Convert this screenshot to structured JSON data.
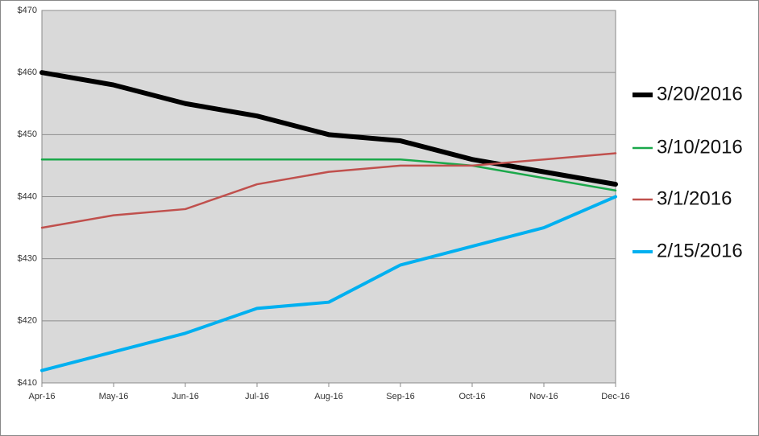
{
  "chart_data": {
    "type": "line",
    "categories": [
      "Apr-16",
      "May-16",
      "Jun-16",
      "Jul-16",
      "Aug-16",
      "Sep-16",
      "Oct-16",
      "Nov-16",
      "Dec-16"
    ],
    "series": [
      {
        "name": "3/20/2016",
        "color": "#000000",
        "values": [
          460,
          458,
          455,
          453,
          450,
          449,
          446,
          444,
          442
        ]
      },
      {
        "name": "3/10/2016",
        "color": "#1aa84a",
        "values": [
          446,
          446,
          446,
          446,
          446,
          446,
          445,
          443,
          441
        ]
      },
      {
        "name": "3/1/2016",
        "color": "#c0504d",
        "values": [
          435,
          437,
          438,
          442,
          444,
          445,
          445,
          446,
          447
        ]
      },
      {
        "name": "2/15/2016",
        "color": "#00b0f0",
        "values": [
          412,
          415,
          418,
          422,
          423,
          429,
          432,
          435,
          440
        ]
      }
    ],
    "ylim": [
      410,
      470
    ],
    "yticks": [
      {
        "value": 410,
        "label": "$410"
      },
      {
        "value": 420,
        "label": "$420"
      },
      {
        "value": 430,
        "label": "$430"
      },
      {
        "value": 440,
        "label": "$440"
      },
      {
        "value": 450,
        "label": "$450"
      },
      {
        "value": 460,
        "label": "$460"
      },
      {
        "value": 470,
        "label": "$470"
      }
    ],
    "grid": true,
    "legend": "right"
  }
}
